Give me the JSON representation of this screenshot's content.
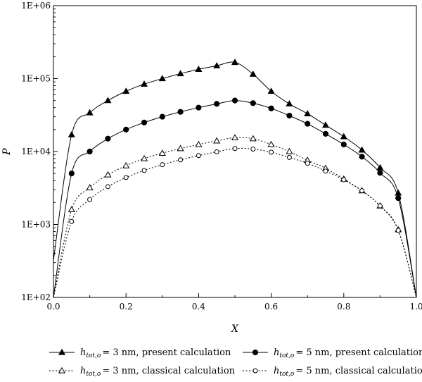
{
  "chart_data": {
    "type": "line",
    "title": "",
    "xlabel": "X",
    "ylabel": "P",
    "xlim": [
      0.0,
      1.0
    ],
    "ylim": [
      100,
      1000000
    ],
    "yscale": "log",
    "grid": false,
    "legend_position": "bottom",
    "x_ticks": [
      "0.0",
      "0.2",
      "0.4",
      "0.6",
      "0.8",
      "1.0"
    ],
    "y_ticks": [
      "1E+02",
      "1E+03",
      "1E+04",
      "1E+05",
      "1E+06"
    ],
    "x": [
      0.05,
      0.1,
      0.15,
      0.2,
      0.25,
      0.3,
      0.35,
      0.4,
      0.45,
      0.5,
      0.55,
      0.6,
      0.65,
      0.7,
      0.75,
      0.8,
      0.85,
      0.9,
      0.95
    ],
    "series": [
      {
        "name": "= 3 nm, present calculation",
        "legend_symbol": "h",
        "legend_subscript": "tot,o",
        "marker": "triangle-filled",
        "line": "solid",
        "edge_left": 320,
        "edge_right": 100,
        "values": [
          17000,
          34000,
          50000,
          67000,
          84000,
          100000,
          117000,
          134000,
          150000,
          167000,
          115000,
          67000,
          45000,
          33000,
          23000,
          16000,
          10500,
          6000,
          2700
        ]
      },
      {
        "name": "= 5 nm, present calculation",
        "legend_symbol": "h",
        "legend_subscript": "tot,o",
        "marker": "circle-filled",
        "line": "solid",
        "edge_left": 100,
        "edge_right": 100,
        "values": [
          5000,
          10000,
          15000,
          20000,
          25000,
          30000,
          35000,
          40000,
          45000,
          50000,
          46000,
          39000,
          31000,
          24000,
          17500,
          12500,
          8500,
          5100,
          2300
        ]
      },
      {
        "name": "= 3 nm, classical calculation",
        "legend_symbol": "h",
        "legend_subscript": "tot,o",
        "marker": "triangle-open",
        "line": "dotted",
        "edge_left": 100,
        "edge_right": 100,
        "values": [
          1600,
          3200,
          4800,
          6400,
          8000,
          9500,
          11000,
          12500,
          14000,
          15500,
          15000,
          12500,
          10000,
          7600,
          5900,
          4200,
          2900,
          1800,
          850
        ]
      },
      {
        "name": "= 5 nm, classical calculation",
        "legend_symbol": "h",
        "legend_subscript": "tot,o",
        "marker": "circle-open",
        "line": "dotted",
        "edge_left": 100,
        "edge_right": 100,
        "values": [
          1100,
          2200,
          3300,
          4400,
          5500,
          6600,
          7700,
          8800,
          9900,
          11000,
          10800,
          9800,
          8300,
          6900,
          5400,
          4100,
          2900,
          1800,
          830
        ]
      }
    ]
  }
}
